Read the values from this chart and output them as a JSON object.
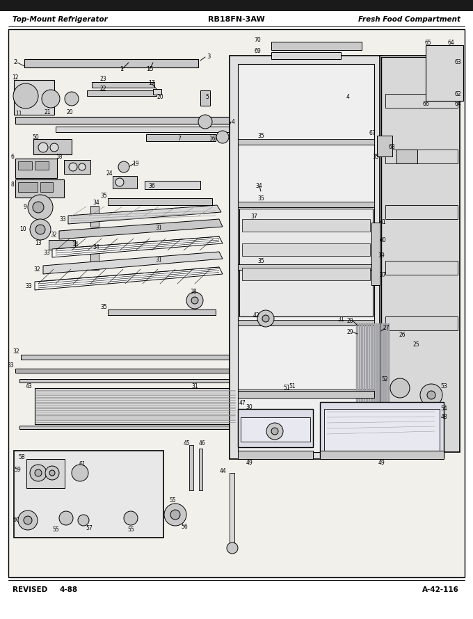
{
  "title_left": "Top-Mount Refrigerator",
  "title_center": "RB18FN-3AW",
  "title_right": "Fresh Food Compartment",
  "footer_left": "REVISED",
  "footer_center": "4-88",
  "footer_right": "A-42-116",
  "bg_color": "#ffffff",
  "border_color": "#000000",
  "header_bar_color": "#1a1a1a",
  "diagram_bg": "#f2f0eb",
  "fig_width": 6.8,
  "fig_height": 8.9,
  "dpi": 100
}
